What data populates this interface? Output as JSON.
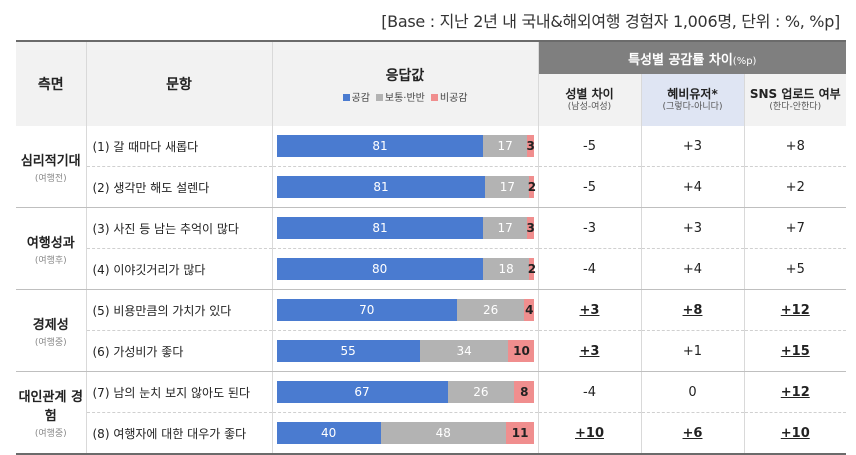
{
  "base_note": "[Base : 지난 2년 내 국내&해외여행 경험자 1,006명, 단위 : %, %p]",
  "headers": {
    "category": "측면",
    "statement": "문항",
    "response": "응답값",
    "diff_group": "특성별 공감률 차이",
    "diff_group_unit": "(%p)",
    "cols": [
      {
        "title": "성별 차이",
        "sub": "(남성-여성)"
      },
      {
        "title": "혜비유저*",
        "sub": "(그렇다-아니다)"
      },
      {
        "title": "SNS 업로드 여부",
        "sub": "(한다-안한다)"
      }
    ]
  },
  "legend": [
    {
      "label": "공감",
      "color": "#4a7bd0"
    },
    {
      "label": "보통·반반",
      "color": "#b3b3b3"
    },
    {
      "label": "비공감",
      "color": "#f08e8e"
    }
  ],
  "groups": [
    {
      "name": "심리적기대",
      "sub": "(여행전)"
    },
    {
      "name": "여행성과",
      "sub": "(여행후)"
    },
    {
      "name": "경제성",
      "sub": "(여행중)"
    },
    {
      "name": "대인관계 경험",
      "sub": "(여행중)"
    }
  ],
  "chart_data": {
    "type": "bar",
    "orientation": "horizontal-stacked-100",
    "unit": "%",
    "categories": [
      "(1) 갈 때마다 새롭다",
      "(2) 생각만 해도 설렌다",
      "(3) 사진 등 남는 추억이 많다",
      "(4) 이야깃거리가 많다",
      "(5) 비용만큼의 가치가 있다",
      "(6) 가성비가 좋다",
      "(7) 남의 눈치 보지 않아도 된다",
      "(8) 여행자에 대한 대우가 좋다"
    ],
    "series": [
      {
        "name": "공감",
        "values": [
          81,
          81,
          81,
          80,
          70,
          55,
          67,
          40
        ]
      },
      {
        "name": "보통·반반",
        "values": [
          17,
          17,
          17,
          18,
          26,
          34,
          26,
          48
        ]
      },
      {
        "name": "비공감",
        "values": [
          3,
          2,
          3,
          2,
          4,
          10,
          8,
          11
        ]
      }
    ],
    "differences": {
      "성별 차이": [
        "-5",
        "-5",
        "-3",
        "-4",
        "+3",
        "+3",
        "-4",
        "+10"
      ],
      "혜비유저*": [
        "+3",
        "+4",
        "+3",
        "+4",
        "+8",
        "+1",
        "0",
        "+6"
      ],
      "SNS 업로드 여부": [
        "+8",
        "+2",
        "+7",
        "+5",
        "+12",
        "+15",
        "+12",
        "+10"
      ]
    },
    "significant": {
      "성별 차이": [
        false,
        false,
        false,
        false,
        true,
        true,
        false,
        true
      ],
      "혜비유저*": [
        false,
        false,
        false,
        false,
        true,
        false,
        false,
        true
      ],
      "SNS 업로드 여부": [
        false,
        false,
        false,
        false,
        true,
        true,
        true,
        true
      ]
    }
  }
}
